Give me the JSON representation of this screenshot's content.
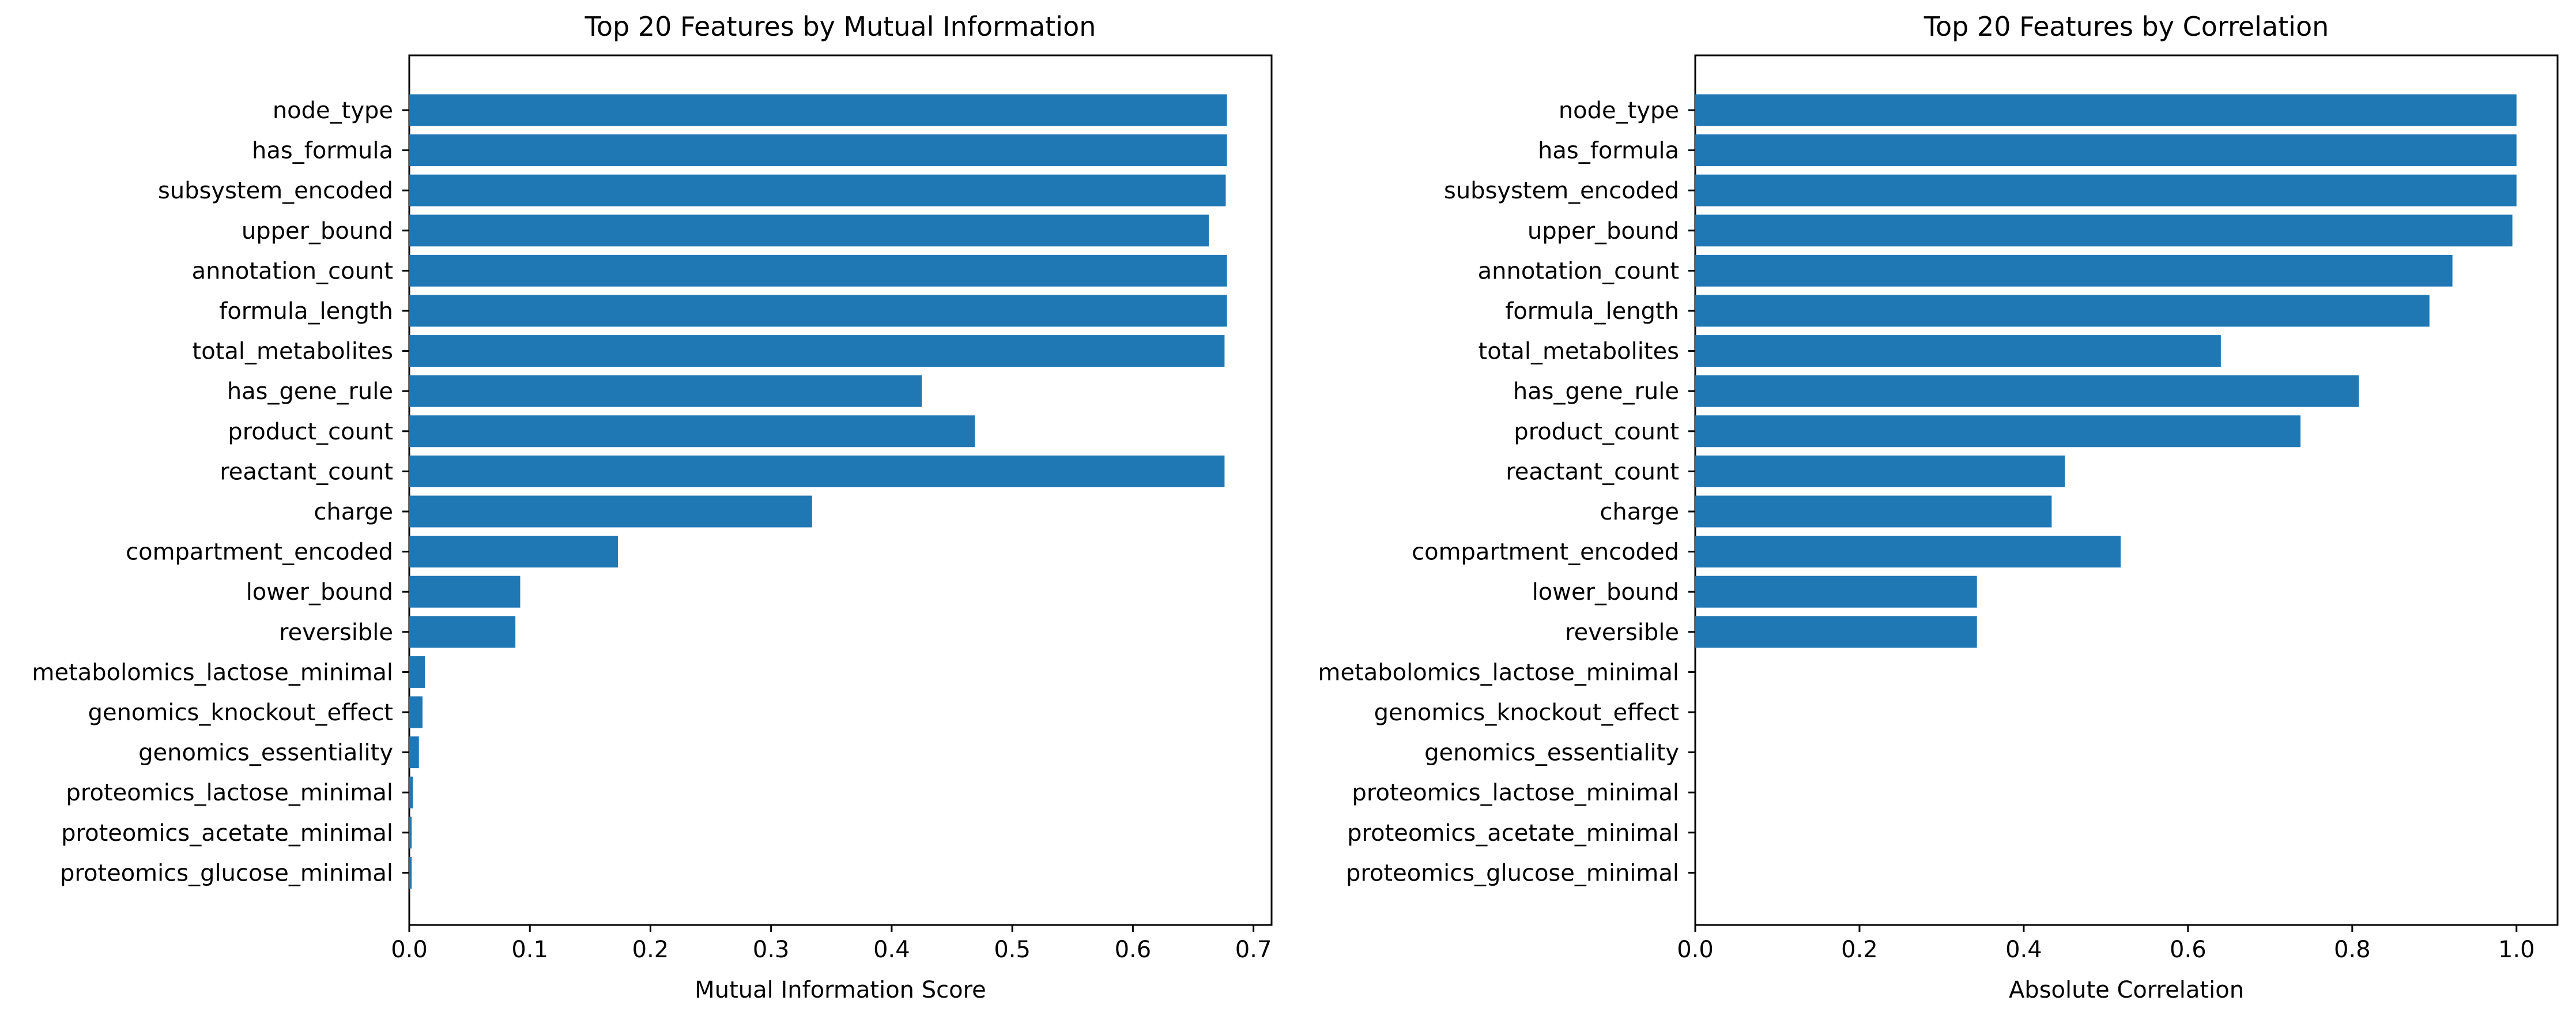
{
  "chart_data": [
    {
      "type": "bar",
      "orientation": "horizontal",
      "title": "Top 20 Features by Mutual Information",
      "xlabel": "Mutual Information Score",
      "ylabel": "",
      "xlim": [
        0,
        0.715
      ],
      "xticks": [
        0.0,
        0.1,
        0.2,
        0.3,
        0.4,
        0.5,
        0.6,
        0.7
      ],
      "xtick_labels": [
        "0.0",
        "0.1",
        "0.2",
        "0.3",
        "0.4",
        "0.5",
        "0.6",
        "0.7"
      ],
      "grid": false,
      "color": "#1f77b4",
      "categories": [
        "node_type",
        "has_formula",
        "subsystem_encoded",
        "upper_bound",
        "annotation_count",
        "formula_length",
        "total_metabolites",
        "has_gene_rule",
        "product_count",
        "reactant_count",
        "charge",
        "compartment_encoded",
        "lower_bound",
        "reversible",
        "metabolomics_lactose_minimal",
        "genomics_knockout_effect",
        "genomics_essentiality",
        "proteomics_lactose_minimal",
        "proteomics_acetate_minimal",
        "proteomics_glucose_minimal"
      ],
      "values": [
        0.678,
        0.678,
        0.677,
        0.663,
        0.678,
        0.678,
        0.676,
        0.425,
        0.469,
        0.676,
        0.334,
        0.173,
        0.092,
        0.088,
        0.013,
        0.011,
        0.008,
        0.003,
        0.002,
        0.002
      ]
    },
    {
      "type": "bar",
      "orientation": "horizontal",
      "title": "Top 20 Features by Correlation",
      "xlabel": "Absolute Correlation",
      "ylabel": "",
      "xlim": [
        0,
        1.05
      ],
      "xticks": [
        0.0,
        0.2,
        0.4,
        0.6,
        0.8,
        1.0
      ],
      "xtick_labels": [
        "0.0",
        "0.2",
        "0.4",
        "0.6",
        "0.8",
        "1.0"
      ],
      "grid": false,
      "color": "#1f77b4",
      "categories": [
        "node_type",
        "has_formula",
        "subsystem_encoded",
        "upper_bound",
        "annotation_count",
        "formula_length",
        "total_metabolites",
        "has_gene_rule",
        "product_count",
        "reactant_count",
        "charge",
        "compartment_encoded",
        "lower_bound",
        "reversible",
        "metabolomics_lactose_minimal",
        "genomics_knockout_effect",
        "genomics_essentiality",
        "proteomics_lactose_minimal",
        "proteomics_acetate_minimal",
        "proteomics_glucose_minimal"
      ],
      "values": [
        1.0,
        1.0,
        1.0,
        0.995,
        0.922,
        0.894,
        0.64,
        0.808,
        0.737,
        0.45,
        0.434,
        0.518,
        0.343,
        0.343,
        0,
        0,
        0,
        0,
        0,
        0
      ]
    }
  ]
}
